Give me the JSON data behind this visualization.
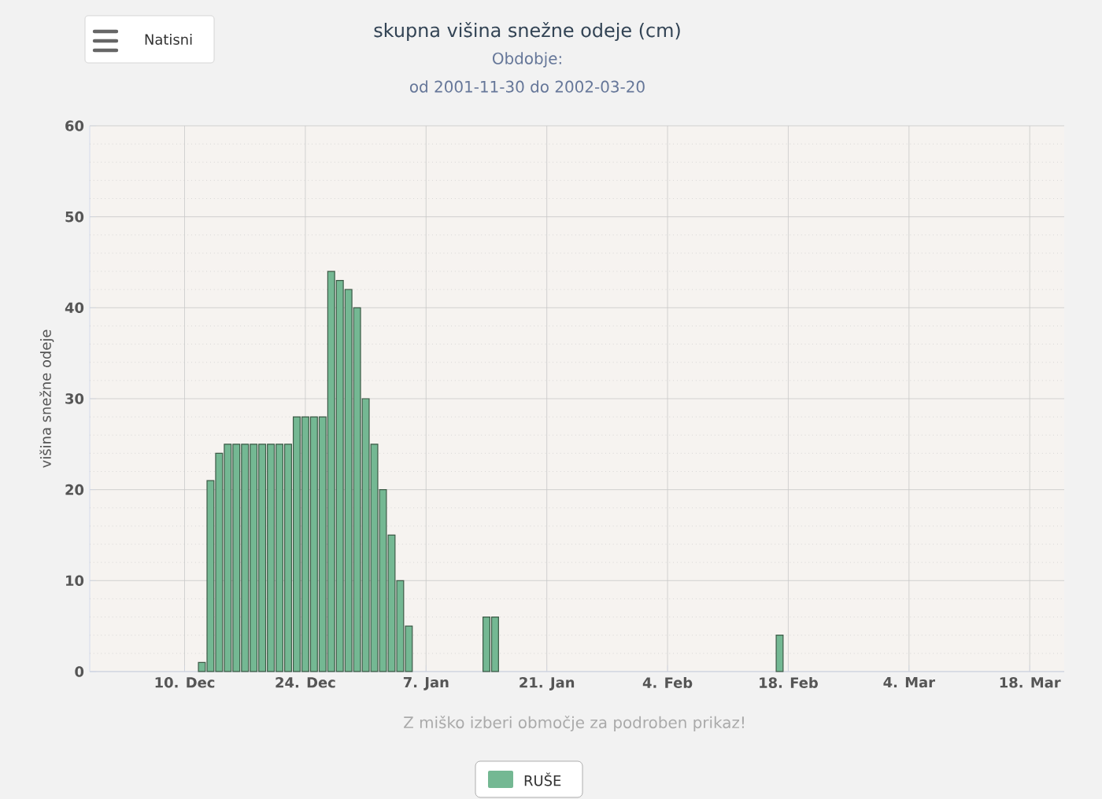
{
  "chart_data": {
    "type": "bar",
    "title": "skupna višina snežne odeje (cm)",
    "subtitle": "Obdobje:",
    "annotations": [
      "od 2001-11-30 do 2002-03-20",
      "Z miško izberi območje za podroben prikaz!",
      "Natisni"
    ],
    "ylabel": "višina snežne odeje",
    "x": [
      "2001-12-12",
      "2001-12-13",
      "2001-12-14",
      "2001-12-15",
      "2001-12-16",
      "2001-12-17",
      "2001-12-18",
      "2001-12-19",
      "2001-12-20",
      "2001-12-21",
      "2001-12-22",
      "2001-12-23",
      "2001-12-24",
      "2001-12-25",
      "2001-12-26",
      "2001-12-27",
      "2001-12-28",
      "2001-12-29",
      "2001-12-30",
      "2001-12-31",
      "2002-01-01",
      "2002-01-02",
      "2002-01-03",
      "2002-01-04",
      "2002-01-05",
      "2002-01-14",
      "2002-01-15",
      "2002-02-17"
    ],
    "series": [
      {
        "name": "RUŠE",
        "color": "#74b893",
        "values": [
          1,
          21,
          24,
          25,
          25,
          25,
          25,
          25,
          25,
          25,
          25,
          28,
          28,
          28,
          28,
          44,
          43,
          42,
          40,
          30,
          25,
          20,
          15,
          10,
          5,
          6,
          6,
          4
        ]
      }
    ],
    "xlim": [
      "2001-11-29",
      "2002-03-22"
    ],
    "xticks": [
      {
        "value": "2001-12-10",
        "label": "10. Dec"
      },
      {
        "value": "2001-12-24",
        "label": "24. Dec"
      },
      {
        "value": "2002-01-07",
        "label": "7. Jan"
      },
      {
        "value": "2002-01-21",
        "label": "21. Jan"
      },
      {
        "value": "2002-02-04",
        "label": "4. Feb"
      },
      {
        "value": "2002-02-18",
        "label": "18. Feb"
      },
      {
        "value": "2002-03-04",
        "label": "4. Mar"
      },
      {
        "value": "2002-03-18",
        "label": "18. Mar"
      }
    ],
    "ylim": [
      0,
      60
    ],
    "yticks": [
      0,
      {
        "value": 2,
        "label": null
      },
      {
        "value": 4,
        "label": null
      },
      {
        "value": 6,
        "label": null
      },
      {
        "value": 8,
        "label": null
      },
      10,
      {
        "value": 12,
        "label": null
      },
      {
        "value": 14,
        "label": null
      },
      {
        "value": 16,
        "label": null
      },
      {
        "value": 18,
        "label": null
      },
      20,
      {
        "value": 22,
        "label": null
      },
      {
        "value": 24,
        "label": null
      },
      {
        "value": 26,
        "label": null
      },
      {
        "value": 28,
        "label": null
      },
      30,
      {
        "value": 32,
        "label": null
      },
      {
        "value": 34,
        "label": null
      },
      {
        "value": 36,
        "label": null
      },
      {
        "value": 38,
        "label": null
      },
      40,
      {
        "value": 42,
        "label": null
      },
      {
        "value": 44,
        "label": null
      },
      {
        "value": 46,
        "label": null
      },
      {
        "value": 48,
        "label": null
      },
      50,
      {
        "value": 52,
        "label": null
      },
      {
        "value": 54,
        "label": null
      },
      {
        "value": 56,
        "label": null
      },
      {
        "value": 58,
        "label": null
      },
      60
    ],
    "grid": true,
    "legend": "bottom"
  }
}
